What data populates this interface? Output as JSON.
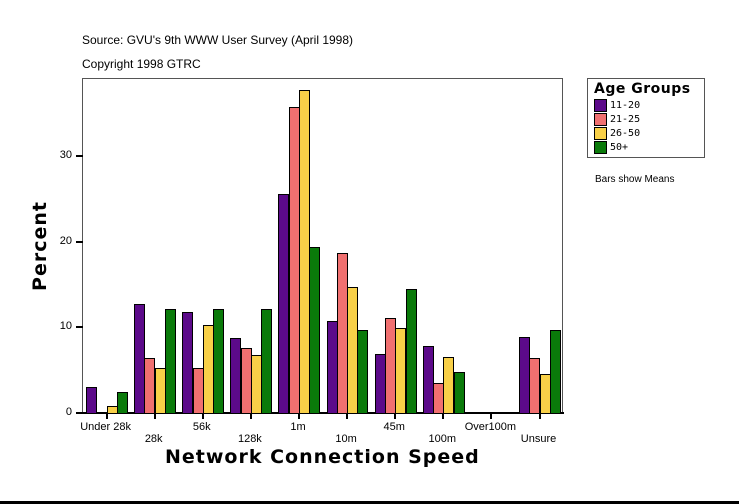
{
  "header": {
    "source": "Source: GVU's 9th WWW User Survey (April 1998)",
    "copyright": "Copyright 1998 GTRC"
  },
  "legend": {
    "title": "Age Groups",
    "items": [
      {
        "label": "11-20",
        "color": "#5c0a8a"
      },
      {
        "label": "21-25",
        "color": "#f07070"
      },
      {
        "label": "26-50",
        "color": "#f8d048"
      },
      {
        "label": "50+",
        "color": "#0a7a0a"
      }
    ]
  },
  "note": "Bars show Means",
  "chart_data": {
    "type": "bar",
    "title": "",
    "xlabel": "Network Connection Speed",
    "ylabel": "Percent",
    "ylim": [
      0,
      39
    ],
    "yticks": [
      0,
      10,
      20,
      30
    ],
    "grid": false,
    "legend_position": "right",
    "categories": [
      "Under 28k",
      "28k",
      "56k",
      "128k",
      "1m",
      "10m",
      "45m",
      "100m",
      "Over100m",
      "Unsure"
    ],
    "series": [
      {
        "name": "11-20",
        "color": "#5c0a8a",
        "values": [
          3.0,
          12.7,
          11.8,
          8.8,
          25.6,
          10.7,
          6.9,
          7.8,
          0,
          8.9
        ]
      },
      {
        "name": "21-25",
        "color": "#f07070",
        "values": [
          0,
          6.4,
          5.3,
          7.6,
          35.7,
          18.7,
          11.1,
          3.5,
          0,
          6.4
        ]
      },
      {
        "name": "26-50",
        "color": "#f8d048",
        "values": [
          0.8,
          5.3,
          10.3,
          6.8,
          37.7,
          14.7,
          9.9,
          6.5,
          0,
          4.6
        ]
      },
      {
        "name": "50+",
        "color": "#0a7a0a",
        "values": [
          2.4,
          12.1,
          12.1,
          12.1,
          19.4,
          9.7,
          14.5,
          4.8,
          0,
          9.7
        ]
      }
    ]
  }
}
